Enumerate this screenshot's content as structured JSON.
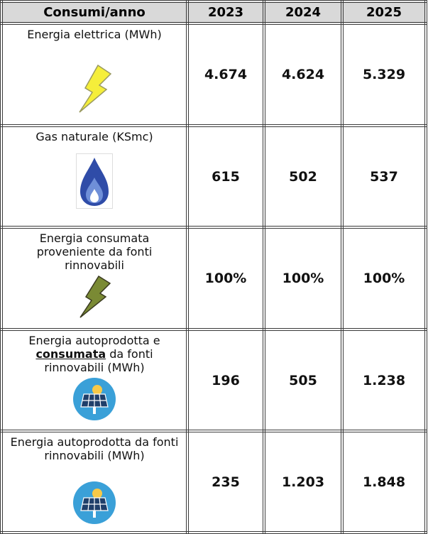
{
  "table": {
    "header": [
      "Consumi/anno",
      "2023",
      "2024",
      "2025"
    ],
    "rows": [
      {
        "label": [
          "Energia elettrica (MWh)"
        ],
        "values": [
          "4.674",
          "4.624",
          "5.329"
        ]
      },
      {
        "label": [
          "Gas naturale (KSmc)"
        ],
        "values": [
          "615",
          "502",
          "537"
        ]
      },
      {
        "label": [
          "Energia consumata proveniente da fonti rinnovabili"
        ],
        "values": [
          "100%",
          "100%",
          "100%"
        ]
      },
      {
        "label": [
          "Energia autoprodotta e ",
          "consumata",
          " da fonti rinnovabili (MWh)"
        ],
        "values": [
          "196",
          "505",
          "1.238"
        ]
      },
      {
        "label": [
          "Energia autoprodotta da fonti rinnovabili (MWh)"
        ],
        "values": [
          "235",
          "1.203",
          "1.848"
        ]
      }
    ]
  }
}
